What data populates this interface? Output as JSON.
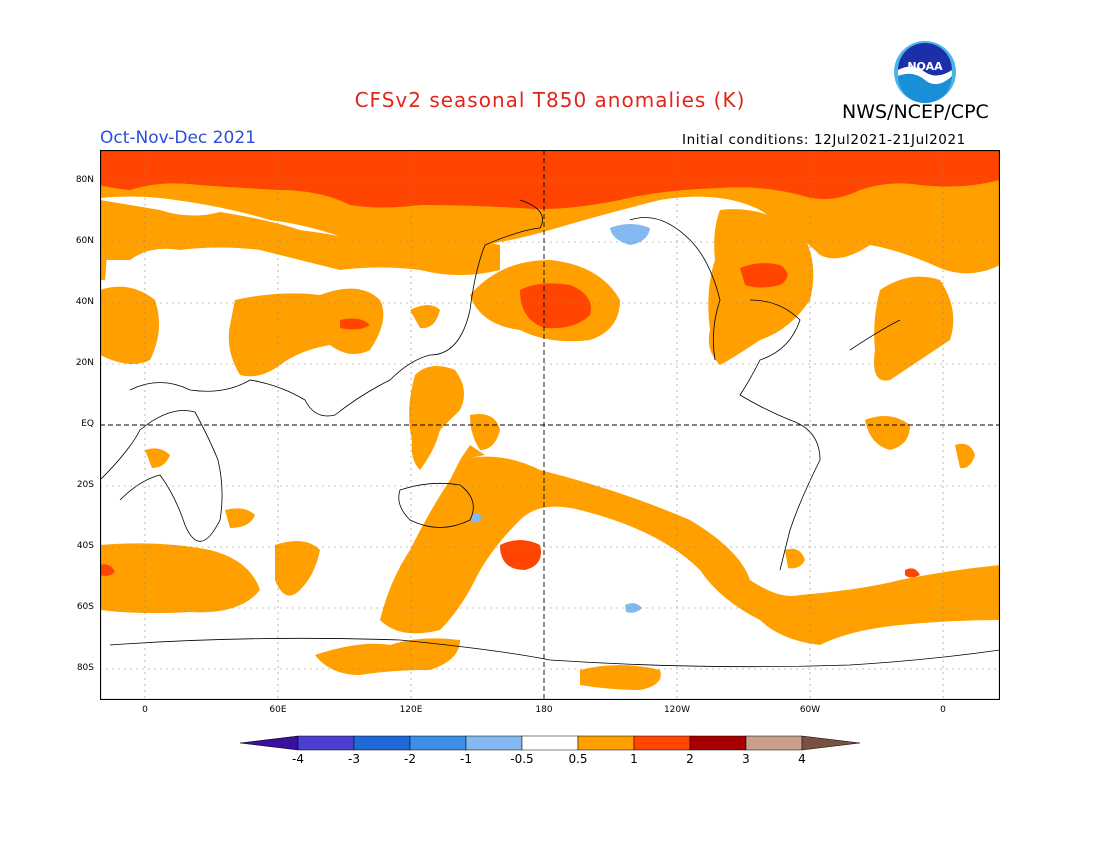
{
  "title": "CFSv2 seasonal T850 anomalies (K)",
  "season": "Oct-Nov-Dec 2021",
  "agency": "NWS/NCEP/CPC",
  "logo_text": "NOAA",
  "initial_conditions": "Initial conditions: 12Jul2021-21Jul2021",
  "lat_labels": [
    "80N",
    "60N",
    "40N",
    "20N",
    "EQ",
    "20S",
    "40S",
    "60S",
    "80S"
  ],
  "lon_labels": [
    "0",
    "60E",
    "120E",
    "180",
    "120W",
    "60W",
    "0"
  ],
  "colorbar": {
    "labels": [
      "-4",
      "-3",
      "-2",
      "-1",
      "-0.5",
      "0.5",
      "1",
      "2",
      "3",
      "4"
    ],
    "colors": [
      "#3a0f9e",
      "#4a3fd0",
      "#1f6ad6",
      "#3d8ee8",
      "#84b8f0",
      "#ffffff",
      "#ffa000",
      "#ff4500",
      "#a80000",
      "#c9a08b",
      "#7a5040"
    ]
  },
  "colors": {
    "anom_0_5_1": "#ffa000",
    "anom_1_2": "#ff4500",
    "anom_neg_0_5_1": "#84b8f0"
  }
}
